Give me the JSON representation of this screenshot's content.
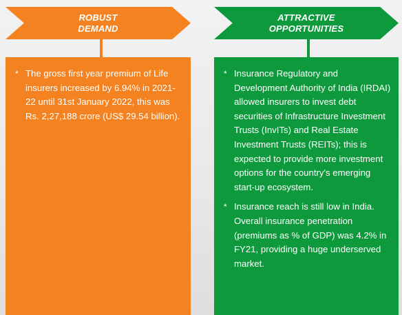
{
  "left": {
    "title_line1": "ROBUST",
    "title_line2": "DEMAND",
    "color": "#f58220",
    "bullets": [
      "The gross first year premium of Life insurers increased by 6.94% in 2021-22 until 31st January 2022, this was Rs. 2,27,188 crore (US$ 29.54 billion)."
    ]
  },
  "right": {
    "title_line1": "ATTRACTIVE",
    "title_line2": "OPPORTUNITIES",
    "color": "#0e9a3c",
    "bullets": [
      "Insurance Regulatory and Development Authority of India (IRDAI) allowed insurers to invest debt securities of Infrastructure Investment Trusts (InvITs) and Real Estate Investment Trusts (REITs); this is expected to provide more investment options for the country's emerging start-up ecosystem.",
      "Insurance reach is still low in India. Overall insurance penetration (premiums as % of GDP) was 4.2% in FY21, providing a huge underserved market."
    ]
  },
  "bullet_symbol": "*"
}
